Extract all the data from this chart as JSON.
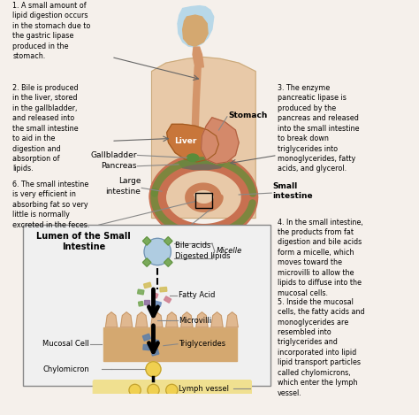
{
  "background_color": "#f5f0eb",
  "annotations": {
    "note1": "1. A small amount of\nlipid digestion occurs\nin the stomach due to\nthe gastric lipase\nproduced in the\nstomach.",
    "note2": "2. Bile is produced\nin the liver, stored\nin the gallbladder,\nand released into\nthe small intestine\nto aid in the\ndigestion and\nabsorption of\nlipids.",
    "note3": "3. The enzyme\npancreatic lipase is\nproduced by the\npancreas and released\ninto the small intestine\nto break down\ntriglycerides into\nmonoglycerides, fatty\nacids, and glycerol.",
    "note4": "4. In the small intestine,\nthe products from fat\ndigestion and bile acids\nform a micelle, which\nmoves toward the\nmicrovilli to allow the\nlipids to diffuse into the\nmucosal cells.",
    "note5": "5. Inside the mucosal\ncells, the fatty acids and\nmonoglycerides are\nresembled into\ntriglycerides and\nincorporated into lipid\nlipid transport particles\ncalled chylomicrons,\nwhich enter the lymph\nvessel.",
    "note6": "6. The small intestine\nis very efficient in\nabsorbing fat so very\nlittle is normally\nexcreted in the feces.",
    "stomach_label": "Stomach",
    "liver_label": "Liver",
    "gallbladder_label": "Gallbladder",
    "pancreas_label": "Pancreas",
    "large_intestine_label": "Large\nintestine",
    "small_intestine_label": "Small\nintestine",
    "lumen_title": "Lumen of the Small\nIntestine",
    "bile_acids_label": "Bile acids",
    "digested_lipids_label": "Digested lipids",
    "micelle_label": "Micelle",
    "fatty_acid_label": "Fatty Acid",
    "microvilli_label": "Microvilli",
    "triglycerides_label": "Triglycerides",
    "mucosal_cell_label": "Mucosal Cell",
    "chylomicron_label": "Chylomicron",
    "lymph_vessel_label": "Lymph vessel"
  },
  "colors": {
    "skin": "#e8c9a8",
    "skin_outline": "#c8a878",
    "head_blue": "#b8d8e8",
    "head_tan": "#d4a870",
    "throat": "#d4956a",
    "liver": "#c8763a",
    "liver_outline": "#a05a20",
    "stomach": "#d4896a",
    "stomach_outline": "#b06040",
    "gallbladder": "#5a8c3a",
    "pancreas": "#7a6a5a",
    "intestine_large": "#c87050",
    "intestine_green": "#6a8c3a",
    "intestine_small_coil": "#c87850",
    "intestine_bottom": "#7a9068",
    "lumen_bg": "#f0f0f0",
    "lumen_border": "#888888",
    "micelle_color": "#a8c8e0",
    "bile_acid_green": "#7aaa5a",
    "bile_acid_outline": "#5a8a3a",
    "fatty_acid_yellow": "#d4c060",
    "fatty_acid_green": "#90a870",
    "fatty_acid_blue": "#7090c0",
    "fatty_acid_pink": "#d08090",
    "fatty_acid_purple": "#9070a0",
    "mucosal_wall": "#d4a870",
    "mucosal_villi": "#e0b890",
    "triglyceride_color": "#6080a8",
    "chylomicron_color": "#f0d050",
    "lymph_color": "#f0e090",
    "lymph_border": "#c8b840",
    "arrow_color": "#666666",
    "text_color": "#000000",
    "line_color": "#888888",
    "white": "#ffffff"
  }
}
